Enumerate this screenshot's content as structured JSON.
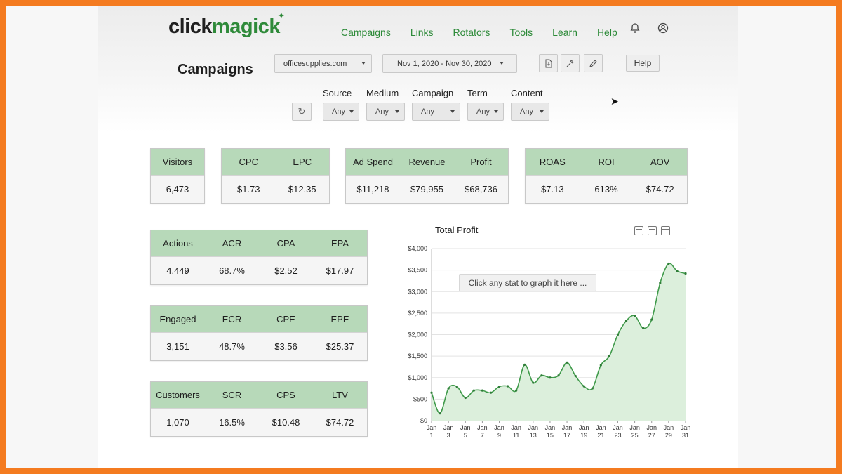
{
  "brand": {
    "logo_part1": "click",
    "logo_part2": "magick"
  },
  "nav": {
    "items": [
      "Campaigns",
      "Links",
      "Rotators",
      "Tools",
      "Learn",
      "Help"
    ],
    "bell_icon": "bell-icon",
    "user_icon": "user-circle-icon"
  },
  "page": {
    "title": "Campaigns"
  },
  "toolbar": {
    "domain_value": "officesupplies.com",
    "date_range_value": "Nov 1, 2020 - Nov 30, 2020",
    "help_label": "Help",
    "icons": [
      "file-export-icon",
      "wrench-icon",
      "pencil-icon"
    ]
  },
  "filters": [
    {
      "label": "Source",
      "value": "Any"
    },
    {
      "label": "Medium",
      "value": "Any"
    },
    {
      "label": "Campaign",
      "value": "Any"
    },
    {
      "label": "Term",
      "value": "Any"
    },
    {
      "label": "Content",
      "value": "Any"
    }
  ],
  "stats": {
    "visitors": {
      "headers": [
        "Visitors"
      ],
      "values": [
        "6,473"
      ]
    },
    "cpc_epc": {
      "headers": [
        "CPC",
        "EPC"
      ],
      "values": [
        "$1.73",
        "$12.35"
      ]
    },
    "spend": {
      "headers": [
        "Ad Spend",
        "Revenue",
        "Profit"
      ],
      "values": [
        "$11,218",
        "$79,955",
        "$68,736"
      ]
    },
    "roas": {
      "headers": [
        "ROAS",
        "ROI",
        "AOV"
      ],
      "values": [
        "$7.13",
        "613%",
        "$74.72"
      ]
    },
    "actions": {
      "headers": [
        "Actions",
        "ACR",
        "CPA",
        "EPA"
      ],
      "values": [
        "4,449",
        "68.7%",
        "$2.52",
        "$17.97"
      ]
    },
    "engaged": {
      "headers": [
        "Engaged",
        "ECR",
        "CPE",
        "EPE"
      ],
      "values": [
        "3,151",
        "48.7%",
        "$3.56",
        "$25.37"
      ]
    },
    "customers": {
      "headers": [
        "Customers",
        "SCR",
        "CPS",
        "LTV"
      ],
      "values": [
        "1,070",
        "16.5%",
        "$10.48",
        "$74.72"
      ]
    }
  },
  "chart_hint": "Click any stat to graph it here ...",
  "colors": {
    "accent_green": "#2c8a38",
    "header_green": "#b7d9b9",
    "line_green": "#3f9a4a",
    "area_green": "#dcefdc",
    "frame_orange": "#f47b20"
  },
  "chart_data": {
    "type": "area",
    "title": "Total Profit",
    "x": [
      "Jan 1",
      "Jan 2",
      "Jan 3",
      "Jan 4",
      "Jan 5",
      "Jan 6",
      "Jan 7",
      "Jan 8",
      "Jan 9",
      "Jan 10",
      "Jan 11",
      "Jan 12",
      "Jan 13",
      "Jan 14",
      "Jan 15",
      "Jan 16",
      "Jan 17",
      "Jan 18",
      "Jan 19",
      "Jan 20",
      "Jan 21",
      "Jan 22",
      "Jan 23",
      "Jan 24",
      "Jan 25",
      "Jan 26",
      "Jan 27",
      "Jan 28",
      "Jan 29",
      "Jan 30",
      "Jan 31"
    ],
    "x_tick_labels": [
      [
        "Jan",
        "1"
      ],
      [
        "Jan",
        "3"
      ],
      [
        "Jan",
        "5"
      ],
      [
        "Jan",
        "7"
      ],
      [
        "Jan",
        "9"
      ],
      [
        "Jan",
        "11"
      ],
      [
        "Jan",
        "13"
      ],
      [
        "Jan",
        "15"
      ],
      [
        "Jan",
        "17"
      ],
      [
        "Jan",
        "19"
      ],
      [
        "Jan",
        "21"
      ],
      [
        "Jan",
        "23"
      ],
      [
        "Jan",
        "25"
      ],
      [
        "Jan",
        "27"
      ],
      [
        "Jan",
        "29"
      ],
      [
        "Jan",
        "31"
      ]
    ],
    "series": [
      {
        "values": [
          650,
          170,
          750,
          790,
          530,
          700,
          700,
          650,
          790,
          800,
          700,
          1300,
          880,
          1050,
          1000,
          1050,
          1350,
          1040,
          800,
          750,
          1290,
          1500,
          2000,
          2320,
          2440,
          2150,
          2350,
          3200,
          3650,
          3480,
          3420
        ]
      }
    ],
    "y_ticks": [
      "$0",
      "$500",
      "$1,000",
      "$1,500",
      "$2,000",
      "$2,500",
      "$3,000",
      "$3,500",
      "$4,000"
    ],
    "ylim": [
      0,
      4000
    ],
    "grid": true
  }
}
